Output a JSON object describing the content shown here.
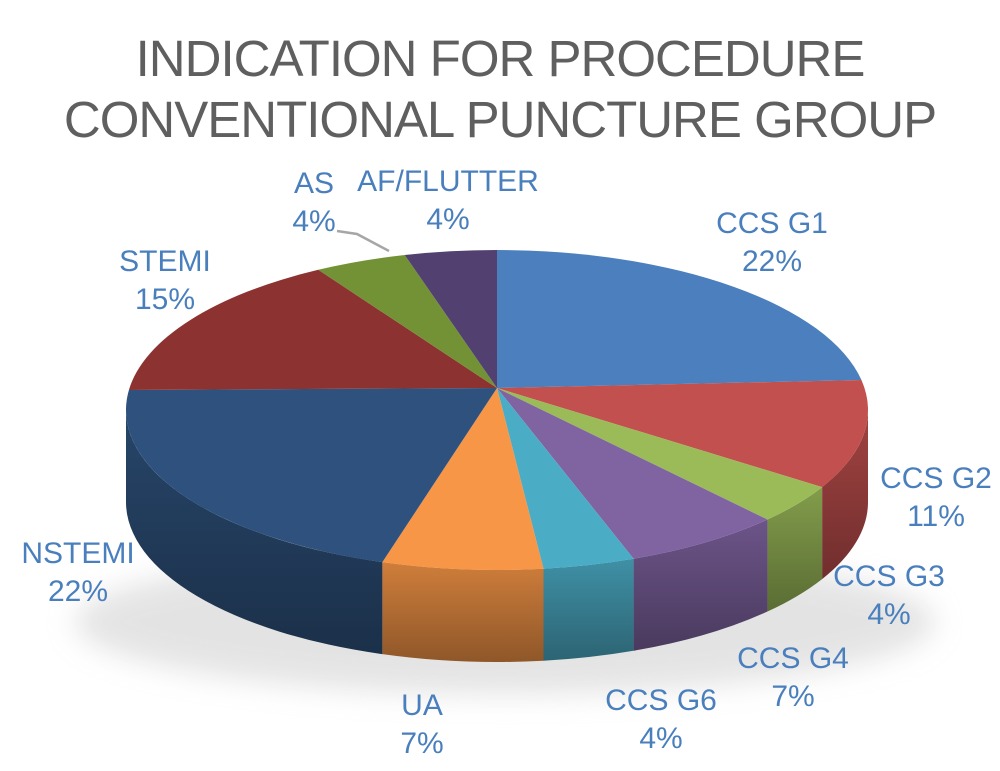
{
  "title": {
    "lines": [
      "INDICATION FOR PROCEDURE",
      "CONVENTIONAL PUNCTURE GROUP"
    ]
  },
  "colors": {
    "title_text": "#5f5f5f",
    "label_text": "#4a7fbd",
    "leader_line": "#a6a6a6",
    "shadow": "#c9c9c9",
    "background": "#ffffff"
  },
  "chart_data": {
    "type": "pie",
    "is_3d": true,
    "title": "INDICATION FOR PROCEDURE CONVENTIONAL PUNCTURE GROUP",
    "unit": "%",
    "direction": "clockwise",
    "start_angle_deg": 0,
    "legend": "none",
    "data_labels": "outside, category name + percentage",
    "slices": [
      {
        "label": "CCS G1",
        "value": 22,
        "pct": "22%",
        "color": "#4b7fbe"
      },
      {
        "label": "CCS G2",
        "value": 11,
        "pct": "11%",
        "color": "#c1504e"
      },
      {
        "label": "CCS G3",
        "value": 4,
        "pct": "4%",
        "color": "#9bbb59"
      },
      {
        "label": "CCS G4",
        "value": 7,
        "pct": "7%",
        "color": "#8064a2"
      },
      {
        "label": "CCS G6",
        "value": 4,
        "pct": "4%",
        "color": "#4bacc6"
      },
      {
        "label": "UA",
        "value": 7,
        "pct": "7%",
        "color": "#f79646"
      },
      {
        "label": "NSTEMI",
        "value": 22,
        "pct": "22%",
        "color": "#2e527d"
      },
      {
        "label": "STEMI",
        "value": 15,
        "pct": "15%",
        "color": "#8c3331"
      },
      {
        "label": "AS",
        "value": 4,
        "pct": "4%",
        "color": "#729235"
      },
      {
        "label": "AF/FLUTTER",
        "value": 4,
        "pct": "4%",
        "color": "#514070"
      }
    ]
  }
}
